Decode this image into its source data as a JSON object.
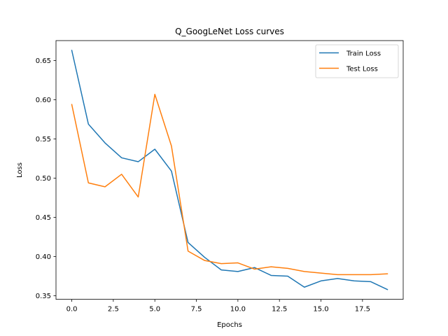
{
  "chart_data": {
    "type": "line",
    "title": "Q_GoogLeNet Loss curves",
    "xlabel": "Epochs",
    "ylabel": "Loss",
    "xlim": [
      -0.95,
      19.95
    ],
    "ylim": [
      0.3455,
      0.6755
    ],
    "xticks": [
      0,
      2.5,
      5,
      7.5,
      10,
      12.5,
      15,
      17.5
    ],
    "xtick_labels": [
      "0.0",
      "2.5",
      "5.0",
      "7.5",
      "10.0",
      "12.5",
      "15.0",
      "17.5"
    ],
    "yticks": [
      0.35,
      0.4,
      0.45,
      0.5,
      0.55,
      0.6,
      0.65
    ],
    "ytick_labels": [
      "0.35",
      "0.40",
      "0.45",
      "0.50",
      "0.55",
      "0.60",
      "0.65"
    ],
    "grid": false,
    "legend_position": "top-right",
    "x": [
      0,
      1,
      2,
      3,
      4,
      5,
      6,
      7,
      8,
      9,
      10,
      11,
      12,
      13,
      14,
      15,
      16,
      17,
      18,
      19
    ],
    "series": [
      {
        "name": "Train Loss",
        "color": "#1f77b4",
        "values": [
          0.663,
          0.569,
          0.545,
          0.526,
          0.521,
          0.537,
          0.509,
          0.418,
          0.399,
          0.383,
          0.381,
          0.386,
          0.376,
          0.375,
          0.361,
          0.369,
          0.372,
          0.369,
          0.368,
          0.358
        ]
      },
      {
        "name": "Test Loss",
        "color": "#ff7f0e",
        "values": [
          0.594,
          0.494,
          0.489,
          0.505,
          0.476,
          0.607,
          0.541,
          0.407,
          0.395,
          0.391,
          0.392,
          0.384,
          0.387,
          0.385,
          0.381,
          0.379,
          0.377,
          0.377,
          0.377,
          0.378
        ]
      }
    ]
  }
}
